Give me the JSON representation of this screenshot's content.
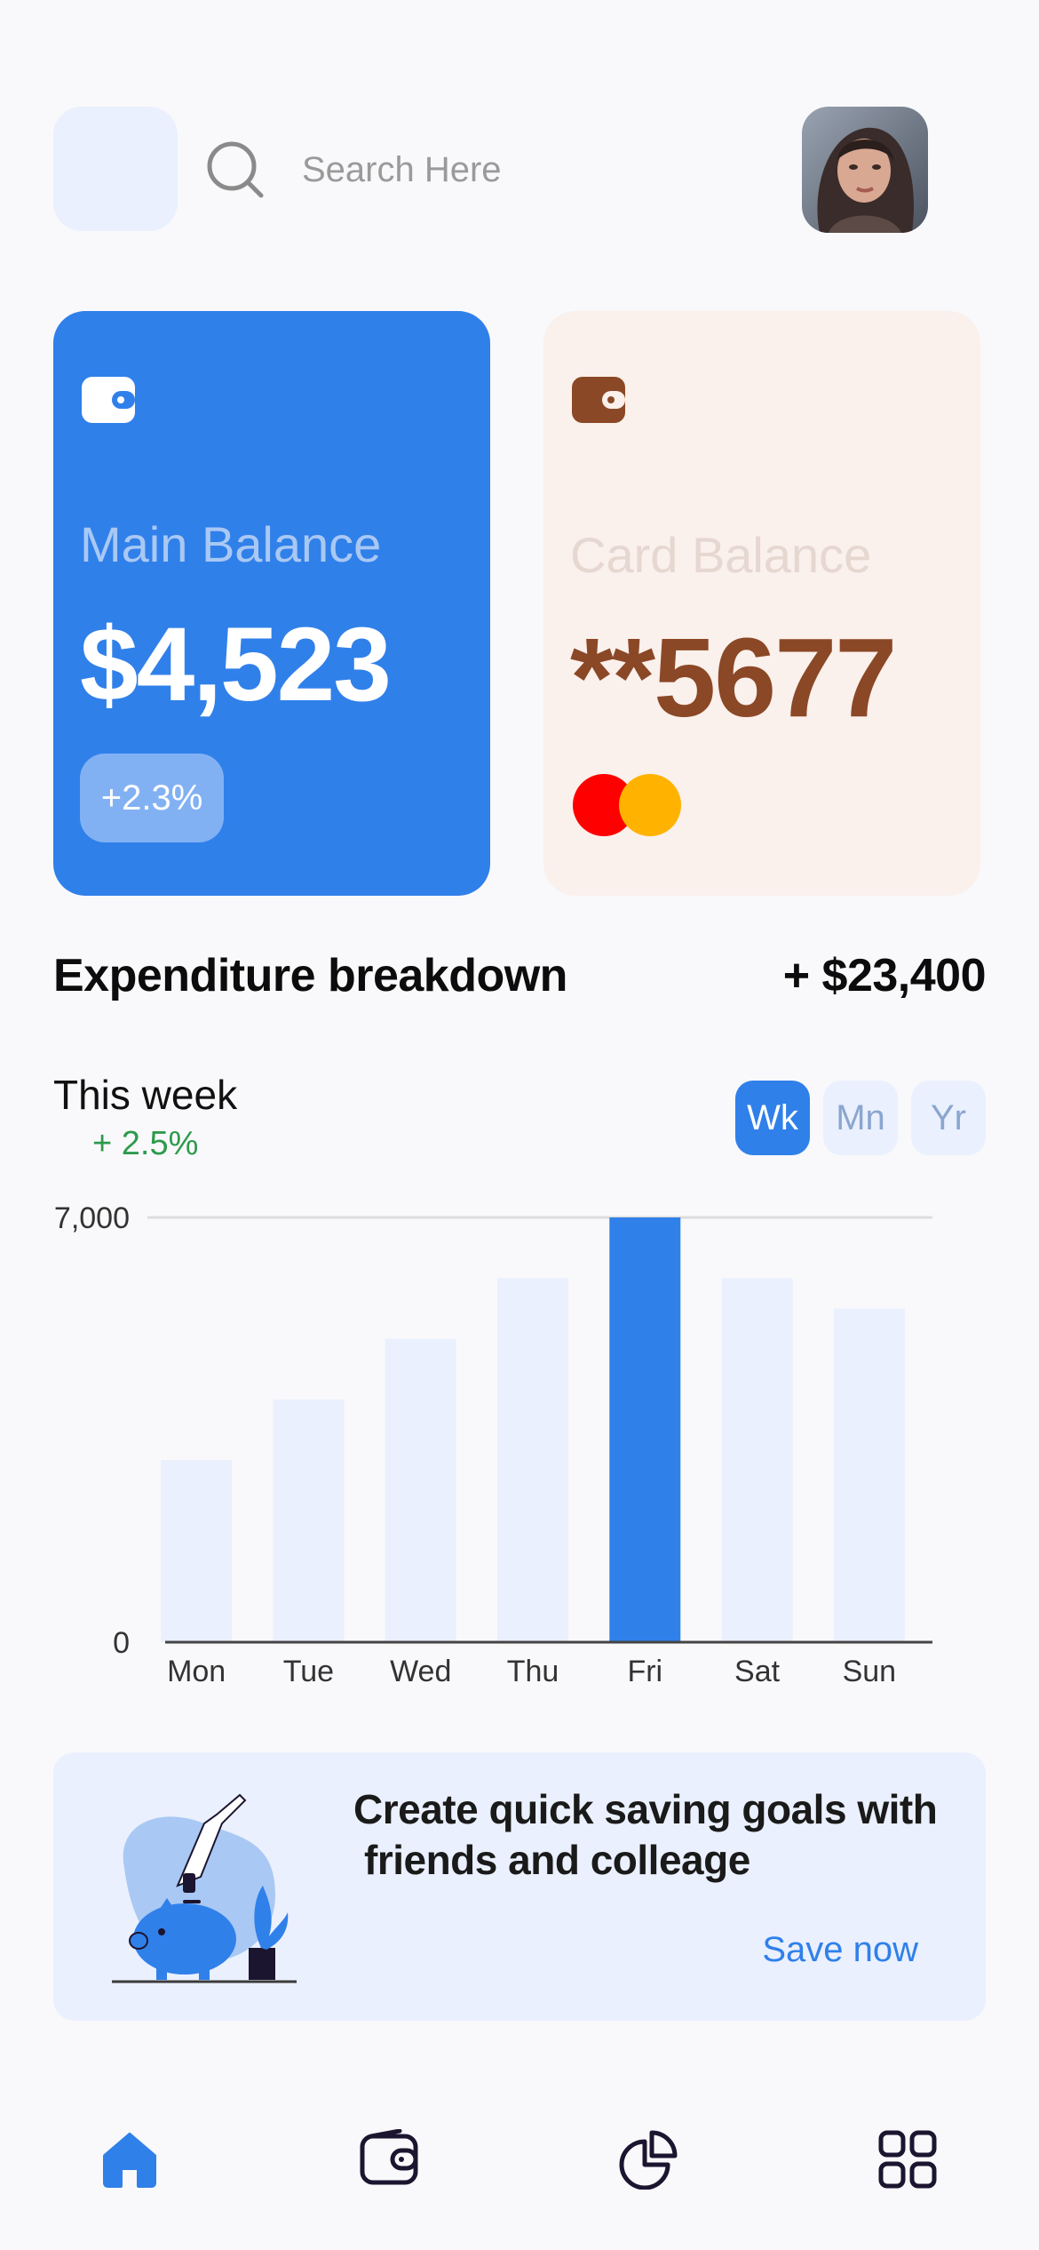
{
  "header": {
    "search_placeholder": "Search Here"
  },
  "cards": [
    {
      "label": "Main Balance",
      "value": "$4,523",
      "change": "+2.3%",
      "accent": "#3080ea"
    },
    {
      "label": "Card Balance",
      "value": "**5677",
      "accent": "#8b4826"
    }
  ],
  "expenditure": {
    "title": "Expenditure breakdown",
    "total": "+ $23,400",
    "period_label": "This week",
    "period_change": "+ 2.5%",
    "range_options": [
      "Wk",
      "Mn",
      "Yr"
    ],
    "selected_range": "Wk"
  },
  "chart_data": {
    "type": "bar",
    "categories": [
      "Mon",
      "Tue",
      "Wed",
      "Thu",
      "Fri",
      "Sat",
      "Sun"
    ],
    "values": [
      3000,
      4000,
      5000,
      6000,
      7000,
      6000,
      5500
    ],
    "highlighted_category": "Fri",
    "ylim": [
      0,
      7000
    ],
    "y_ticks": [
      "0",
      "7,000"
    ],
    "grid": true,
    "colors": {
      "bar": "#eaf0fd",
      "highlight": "#3080ea"
    }
  },
  "promo": {
    "text_line1": "Create quick saving goals with",
    "text_line2": "friends and colleage",
    "cta": "Save now"
  },
  "nav": {
    "items": [
      {
        "icon": "home-icon",
        "active": true
      },
      {
        "icon": "wallet-icon",
        "active": false
      },
      {
        "icon": "pie-chart-icon",
        "active": false
      },
      {
        "icon": "grid-icon",
        "active": false
      }
    ]
  },
  "colors": {
    "primary": "#3080ea",
    "secondary_card": "#faf0ec",
    "positive": "#2e9a4c",
    "nav_inactive": "#1c1530"
  }
}
